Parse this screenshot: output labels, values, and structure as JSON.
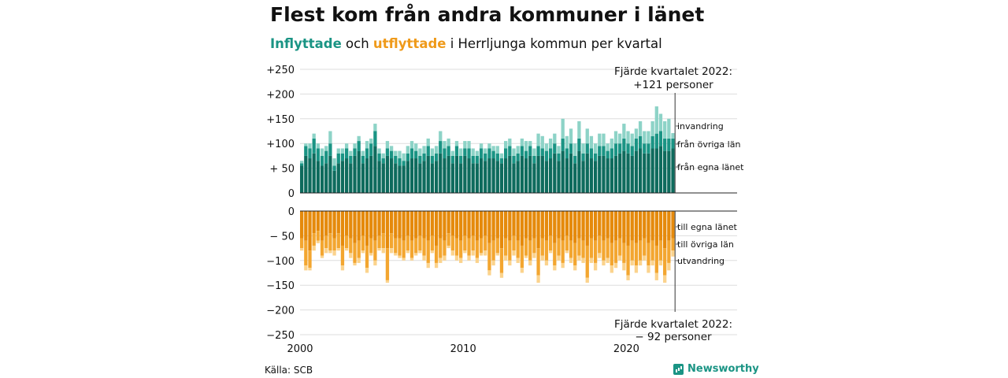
{
  "header": {
    "title": "Flest kom från andra kommuner i länet",
    "subtitle_in": "Inflyttade",
    "subtitle_mid": " och ",
    "subtitle_out": "utflyttade",
    "subtitle_rest": " i Herrljunga kommun per kvartal"
  },
  "footer": {
    "source": "Källa: SCB",
    "brand": "Newsworthy"
  },
  "colors": {
    "in_county": "#0e6b5d",
    "in_other": "#1a9484",
    "in_abroad": "#8dd3c7",
    "out_county": "#e58a0c",
    "out_other": "#f3a630",
    "out_abroad": "#fbd38d",
    "grid": "#dddddd"
  },
  "chart_data": {
    "type": "bar",
    "stacked": true,
    "x_start": "2000 Q1",
    "x_end": "2022 Q4",
    "x_ticks": [
      "2000",
      "2010",
      "2020"
    ],
    "top_panel": {
      "y_ticks": [
        "+250",
        "+200",
        "+150",
        "+100",
        "+ 50",
        "0"
      ],
      "ylim": [
        0,
        250
      ],
      "annotation": [
        "Fjärde kvartalet 2022:",
        "+121 personer"
      ],
      "series": [
        {
          "name": "från egna länet",
          "values": [
            55,
            75,
            70,
            80,
            65,
            55,
            60,
            75,
            45,
            60,
            65,
            70,
            60,
            75,
            85,
            60,
            70,
            75,
            95,
            65,
            60,
            75,
            70,
            60,
            55,
            55,
            65,
            70,
            70,
            60,
            65,
            75,
            60,
            65,
            80,
            70,
            75,
            60,
            75,
            60,
            75,
            70,
            60,
            60,
            70,
            65,
            70,
            70,
            65,
            60,
            70,
            75,
            60,
            65,
            75,
            70,
            75,
            60,
            75,
            75,
            65,
            70,
            80,
            65,
            85,
            70,
            80,
            60,
            85,
            65,
            80,
            70,
            65,
            75,
            75,
            70,
            70,
            75,
            80,
            85,
            80,
            75,
            85,
            90,
            80,
            80,
            90,
            90,
            95,
            85,
            85,
            90
          ]
        },
        {
          "name": "från övriga län",
          "values": [
            5,
            20,
            20,
            30,
            25,
            20,
            25,
            25,
            10,
            20,
            15,
            20,
            15,
            15,
            20,
            15,
            20,
            25,
            30,
            15,
            10,
            15,
            15,
            15,
            15,
            10,
            15,
            20,
            15,
            15,
            15,
            20,
            15,
            15,
            25,
            20,
            20,
            15,
            20,
            15,
            15,
            20,
            15,
            15,
            20,
            15,
            20,
            15,
            15,
            10,
            20,
            20,
            15,
            15,
            20,
            15,
            20,
            15,
            20,
            15,
            20,
            20,
            20,
            15,
            25,
            20,
            20,
            15,
            25,
            15,
            20,
            20,
            15,
            20,
            20,
            15,
            20,
            25,
            20,
            25,
            20,
            20,
            25,
            25,
            20,
            20,
            25,
            30,
            30,
            25,
            25,
            20
          ]
        },
        {
          "name": "invandring",
          "values": [
            5,
            5,
            10,
            10,
            10,
            15,
            10,
            25,
            15,
            10,
            10,
            10,
            10,
            10,
            10,
            10,
            15,
            10,
            15,
            10,
            10,
            15,
            10,
            10,
            15,
            15,
            15,
            15,
            15,
            15,
            15,
            15,
            15,
            15,
            20,
            15,
            15,
            10,
            10,
            15,
            15,
            15,
            15,
            10,
            10,
            10,
            10,
            10,
            15,
            10,
            15,
            15,
            15,
            15,
            15,
            20,
            10,
            15,
            25,
            25,
            15,
            20,
            20,
            15,
            40,
            25,
            30,
            25,
            35,
            20,
            30,
            25,
            20,
            25,
            25,
            15,
            20,
            25,
            20,
            30,
            25,
            25,
            20,
            30,
            25,
            25,
            30,
            55,
            35,
            35,
            40,
            11
          ]
        }
      ]
    },
    "bottom_panel": {
      "y_ticks": [
        "0",
        "− 50",
        "−100",
        "−150",
        "−200",
        "−250"
      ],
      "ylim": [
        -250,
        0
      ],
      "annotation": [
        "Fjärde kvartalet 2022:",
        "− 92 personer"
      ],
      "series": [
        {
          "name": "till egna länet",
          "values": [
            -55,
            -60,
            -80,
            -45,
            -40,
            -60,
            -50,
            -45,
            -55,
            -45,
            -70,
            -50,
            -55,
            -65,
            -60,
            -50,
            -70,
            -55,
            -60,
            -50,
            -45,
            -75,
            -45,
            -55,
            -55,
            -60,
            -50,
            -60,
            -55,
            -50,
            -55,
            -60,
            -50,
            -70,
            -55,
            -60,
            -45,
            -50,
            -55,
            -60,
            -50,
            -55,
            -50,
            -60,
            -55,
            -50,
            -65,
            -60,
            -55,
            -75,
            -55,
            -60,
            -50,
            -60,
            -70,
            -55,
            -60,
            -55,
            -75,
            -55,
            -60,
            -50,
            -65,
            -55,
            -60,
            -50,
            -60,
            -65,
            -55,
            -60,
            -70,
            -55,
            -60,
            -50,
            -60,
            -55,
            -65,
            -60,
            -55,
            -65,
            -70,
            -60,
            -65,
            -60,
            -55,
            -65,
            -60,
            -70,
            -60,
            -75,
            -60,
            -55
          ]
        },
        {
          "name": "till övriga län",
          "values": [
            -20,
            -50,
            -35,
            -25,
            -20,
            -30,
            -25,
            -35,
            -25,
            -30,
            -40,
            -25,
            -30,
            -40,
            -35,
            -30,
            -45,
            -30,
            -40,
            -25,
            -30,
            -65,
            -30,
            -30,
            -35,
            -35,
            -30,
            -35,
            -30,
            -30,
            -35,
            -45,
            -30,
            -35,
            -40,
            -30,
            -25,
            -30,
            -35,
            -35,
            -30,
            -35,
            -30,
            -35,
            -30,
            -30,
            -55,
            -40,
            -30,
            -50,
            -35,
            -40,
            -30,
            -35,
            -45,
            -35,
            -40,
            -30,
            -55,
            -35,
            -40,
            -30,
            -45,
            -35,
            -45,
            -30,
            -35,
            -45,
            -35,
            -35,
            -65,
            -40,
            -45,
            -35,
            -40,
            -40,
            -45,
            -45,
            -35,
            -40,
            -60,
            -40,
            -45,
            -40,
            -35,
            -45,
            -40,
            -55,
            -40,
            -55,
            -45,
            -25
          ]
        },
        {
          "name": "utvandring",
          "values": [
            -5,
            -10,
            -5,
            -10,
            -5,
            -5,
            -10,
            -5,
            -10,
            -5,
            -10,
            -5,
            -10,
            -5,
            -10,
            -5,
            -10,
            -5,
            -10,
            -5,
            -10,
            -5,
            -10,
            -5,
            -5,
            -5,
            -5,
            -5,
            -5,
            -5,
            -10,
            -10,
            -5,
            -10,
            -10,
            -10,
            -5,
            -10,
            -10,
            -10,
            -5,
            -10,
            -10,
            -10,
            -5,
            -10,
            -10,
            -10,
            -5,
            -10,
            -10,
            -10,
            -10,
            -10,
            -10,
            -5,
            -10,
            -10,
            -15,
            -10,
            -10,
            -5,
            -10,
            -10,
            -10,
            -5,
            -10,
            -10,
            -10,
            -10,
            -10,
            -10,
            -15,
            -10,
            -10,
            -10,
            -15,
            -10,
            -10,
            -15,
            -10,
            -10,
            -15,
            -10,
            -10,
            -15,
            -10,
            -15,
            -10,
            -15,
            -15,
            -12
          ]
        }
      ]
    }
  }
}
